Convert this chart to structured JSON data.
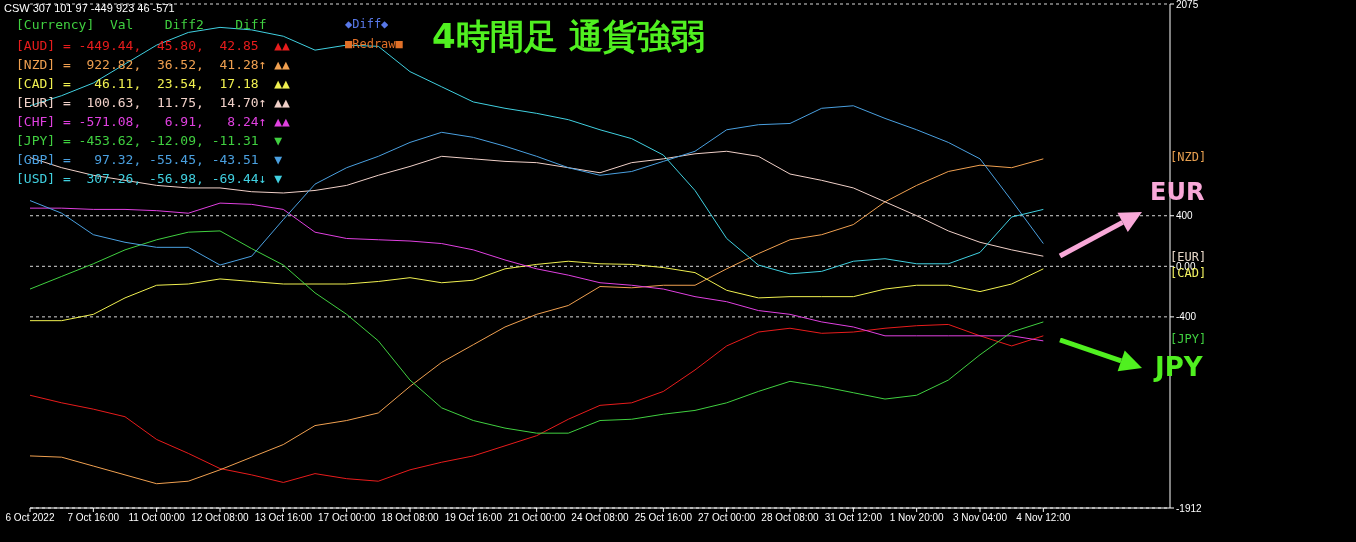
{
  "chart_data": {
    "type": "line",
    "title": "4時間足 通貨強弱",
    "categories": [
      "6 Oct 2022",
      null,
      "7 Oct 16:00",
      null,
      "11 Oct 00:00",
      null,
      "12 Oct 08:00",
      null,
      "13 Oct 16:00",
      null,
      "17 Oct 00:00",
      null,
      "18 Oct 08:00",
      null,
      "19 Oct 16:00",
      null,
      "21 Oct 00:00",
      null,
      "24 Oct 08:00",
      null,
      "25 Oct 16:00",
      null,
      "27 Oct 00:00",
      null,
      "28 Oct 08:00",
      null,
      "31 Oct 12:00",
      null,
      "1 Nov 20:00",
      null,
      "3 Nov 04:00",
      null,
      "4 Nov 12:00",
      null,
      null,
      null,
      null
    ],
    "series": [
      {
        "name": "[AUD] = -449.44,  45.80,  42.85  ▲▲",
        "color": "#e81c1c",
        "values": [
          -1020,
          -1080,
          -1130,
          -1190,
          -1370,
          -1480,
          -1600,
          -1650,
          -1710,
          -1640,
          -1680,
          -1700,
          -1610,
          -1550,
          -1500,
          -1420,
          -1340,
          -1210,
          -1100,
          -1080,
          -990,
          -820,
          -630,
          -520,
          -490,
          -530,
          -520,
          -490,
          -470,
          -460,
          -550,
          -630,
          -550,
          null,
          null,
          null,
          null
        ]
      },
      {
        "name": "[NZD] =  922.82,  36.52,  41.28↑ ▲▲",
        "color": "#f0a050",
        "values": [
          -1500,
          -1510,
          -1580,
          -1650,
          -1720,
          -1700,
          -1610,
          -1510,
          -1410,
          -1260,
          -1220,
          -1160,
          -950,
          -760,
          -620,
          -480,
          -380,
          -310,
          -160,
          -170,
          -150,
          -150,
          -20,
          100,
          210,
          250,
          330,
          510,
          640,
          750,
          800,
          780,
          850,
          null,
          null,
          null,
          null
        ]
      },
      {
        "name": "[CAD] =   46.11,  23.54,  17.18  ▲▲",
        "color": "#f0f050",
        "values": [
          -430,
          -430,
          -380,
          -250,
          -150,
          -140,
          -100,
          -120,
          -140,
          -140,
          -140,
          -120,
          -90,
          -130,
          -110,
          -20,
          15,
          40,
          20,
          15,
          -10,
          -50,
          -190,
          -250,
          -240,
          -240,
          -240,
          -180,
          -150,
          -150,
          -200,
          -140,
          -20,
          null,
          null,
          null,
          null
        ]
      },
      {
        "name": "[EUR] =  100.63,  11.75,  14.70↑ ▲▲",
        "color": "#f0d0c8",
        "values": [
          860,
          780,
          720,
          680,
          640,
          620,
          620,
          590,
          580,
          600,
          640,
          720,
          790,
          870,
          850,
          830,
          820,
          780,
          740,
          820,
          850,
          890,
          910,
          870,
          730,
          680,
          620,
          510,
          400,
          280,
          190,
          130,
          80,
          null,
          null,
          null,
          null
        ]
      },
      {
        "name": "[CHF] = -571.08,   6.91,   8.24↑ ▲▲",
        "color": "#e040e0",
        "values": [
          460,
          460,
          450,
          450,
          440,
          420,
          500,
          490,
          450,
          270,
          220,
          210,
          200,
          180,
          130,
          50,
          -20,
          -70,
          -130,
          -150,
          -180,
          -240,
          -280,
          -350,
          -380,
          -440,
          -480,
          -550,
          -550,
          -550,
          -550,
          -550,
          -590,
          null,
          null,
          null,
          null
        ]
      },
      {
        "name": "[JPY] = -453.62, -12.09, -11.31  ▼",
        "color": "#40d040",
        "values": [
          -180,
          -80,
          20,
          130,
          210,
          270,
          280,
          140,
          10,
          -210,
          -380,
          -590,
          -900,
          -1120,
          -1220,
          -1280,
          -1320,
          -1320,
          -1220,
          -1210,
          -1170,
          -1140,
          -1080,
          -990,
          -910,
          -950,
          -1000,
          -1050,
          -1020,
          -900,
          -700,
          -520,
          -440,
          null,
          null,
          null,
          null
        ]
      },
      {
        "name": "[GBP] =   97.32, -55.45, -43.51  ▼",
        "color": "#4aa0e0",
        "values": [
          520,
          420,
          250,
          190,
          150,
          150,
          10,
          80,
          370,
          650,
          780,
          870,
          980,
          1060,
          1020,
          950,
          870,
          780,
          720,
          750,
          830,
          910,
          1080,
          1120,
          1130,
          1250,
          1270,
          1170,
          1080,
          980,
          850,
          520,
          180,
          null,
          null,
          null,
          null
        ]
      },
      {
        "name": "[USD] =  307.26, -56.98, -69.44↓ ▼",
        "color": "#40d0e0",
        "values": [
          1270,
          1350,
          1450,
          1600,
          1750,
          1850,
          1890,
          1870,
          1820,
          1710,
          1750,
          1740,
          1540,
          1420,
          1300,
          1250,
          1210,
          1160,
          1080,
          1010,
          880,
          600,
          220,
          10,
          -60,
          -40,
          40,
          60,
          20,
          20,
          110,
          390,
          450,
          null,
          null,
          null,
          null
        ]
      }
    ],
    "ylim": [
      -1912,
      2075
    ],
    "yticks": [
      2075,
      400,
      {
        "value": 0,
        "label": "0.00"
      },
      -400,
      -1912
    ],
    "grid": "y",
    "legend": "top left",
    "annotations": [
      "CSW 307 101 97 -449 923 46 -571",
      "[Currency]  Val    Diff2    Diff",
      "◆Diff◆",
      "■Redraw■",
      "EUR",
      "JPY",
      "[NZD]",
      "[EUR]",
      "[CAD]",
      "[JPY]"
    ]
  }
}
